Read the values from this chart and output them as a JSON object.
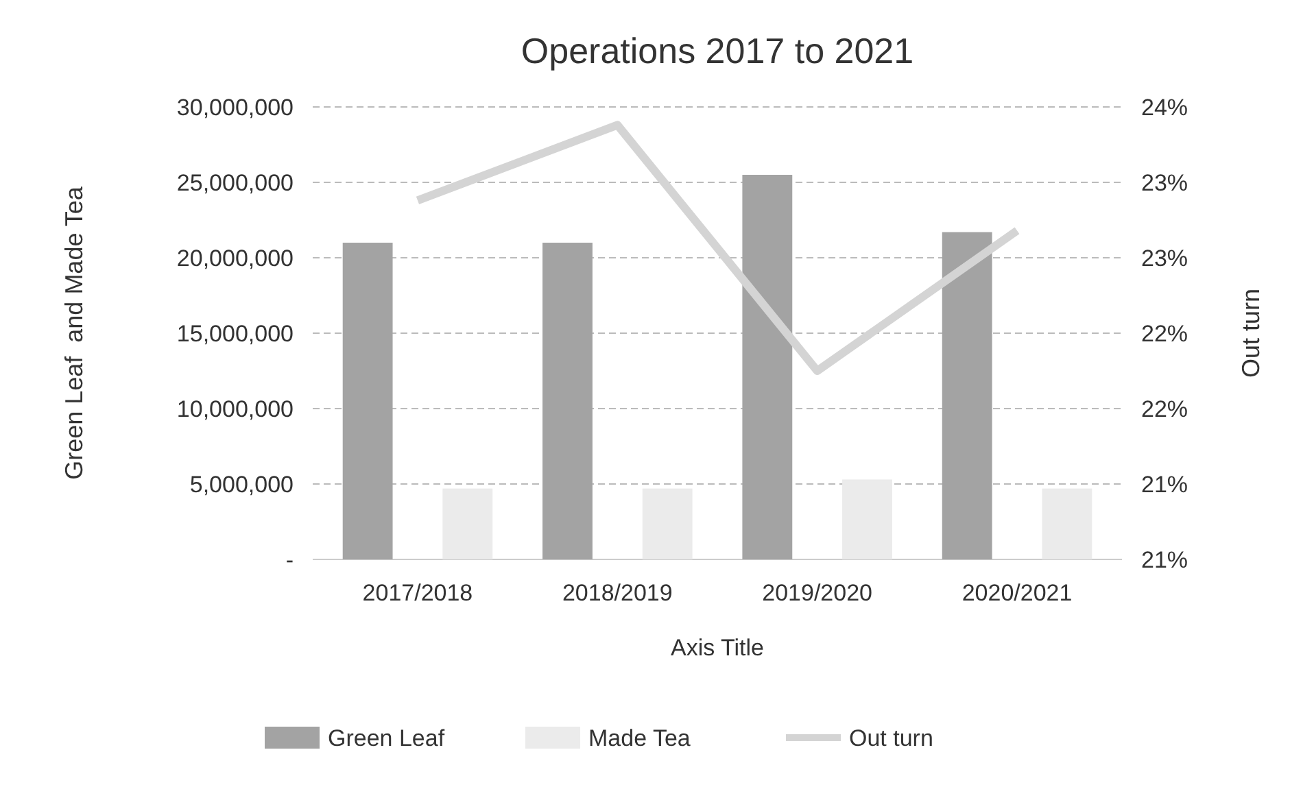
{
  "chart_data": {
    "type": "bar",
    "title": "Operations 2017 to 2021",
    "xlabel": "Axis Title",
    "ylabel": "Green Leaf  and Made Tea",
    "y2label": "Out turn",
    "categories": [
      "2017/2018",
      "2018/2019",
      "2019/2020",
      "2020/2021"
    ],
    "series": [
      {
        "name": "Green Leaf",
        "color": "#a3a3a3",
        "values": [
          21000000,
          21000000,
          25500000,
          21700000
        ]
      },
      {
        "name": "Made Tea",
        "color": "#ebebeb",
        "values": [
          4700000,
          4700000,
          5300000,
          4700000
        ]
      },
      {
        "name": "Out turn",
        "type": "line",
        "axis": "y2",
        "color": "#d4d4d4",
        "values": [
          22.88,
          23.38,
          21.75,
          22.68
        ]
      }
    ],
    "ylim": [
      0,
      30000000
    ],
    "yticks": [
      {
        "value": 0,
        "label": "-"
      },
      {
        "value": 5000000,
        "label": "5,000,000"
      },
      {
        "value": 10000000,
        "label": "10,000,000"
      },
      {
        "value": 15000000,
        "label": "15,000,000"
      },
      {
        "value": 20000000,
        "label": "20,000,000"
      },
      {
        "value": 25000000,
        "label": "25,000,000"
      },
      {
        "value": 30000000,
        "label": "30,000,000"
      }
    ],
    "y2lim": [
      20.5,
      23.5
    ],
    "y2ticks": [
      {
        "value": 20.5,
        "label": "21%"
      },
      {
        "value": 21,
        "label": "21%"
      },
      {
        "value": 21.5,
        "label": "22%"
      },
      {
        "value": 22,
        "label": "22%"
      },
      {
        "value": 22.5,
        "label": "23%"
      },
      {
        "value": 23,
        "label": "23%"
      },
      {
        "value": 23.5,
        "label": "24%"
      }
    ],
    "grid": "y",
    "legend": "bottom",
    "marker": "none"
  }
}
